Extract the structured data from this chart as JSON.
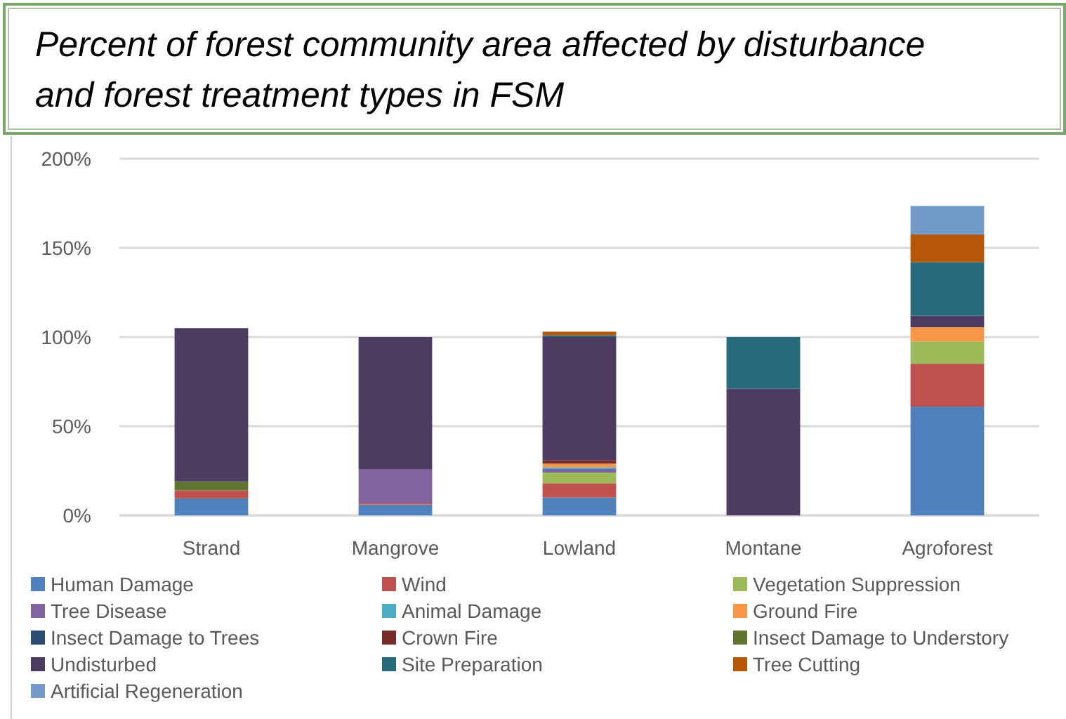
{
  "chart_data": {
    "type": "bar",
    "stacked": true,
    "title": "Percent of forest community area affected by disturbance and forest treatment types in FSM",
    "categories": [
      "Strand",
      "Mangrove",
      "Lowland",
      "Montane",
      "Agroforest"
    ],
    "ylim": [
      0,
      200
    ],
    "yticks": [
      {
        "value": 0,
        "label": "0%"
      },
      {
        "value": 50,
        "label": "50%"
      },
      {
        "value": 100,
        "label": "100%"
      },
      {
        "value": 150,
        "label": "150%"
      },
      {
        "value": 200,
        "label": "200%"
      }
    ],
    "grid": "y",
    "legend": "bottom",
    "series": [
      {
        "name": "Human Damage",
        "color": "#4f81bd",
        "values": [
          9.5,
          6,
          10,
          null,
          61
        ]
      },
      {
        "name": "Wind",
        "color": "#c0504d",
        "values": [
          4.5,
          1,
          8,
          null,
          24
        ]
      },
      {
        "name": "Vegetation Suppression",
        "color": "#9bbb59",
        "values": [
          null,
          null,
          6,
          null,
          12.5
        ]
      },
      {
        "name": "Tree Disease",
        "color": "#8064a2",
        "values": [
          null,
          19,
          2,
          null,
          null
        ]
      },
      {
        "name": "Animal Damage",
        "color": "#4bacc6",
        "values": [
          null,
          null,
          1,
          null,
          null
        ]
      },
      {
        "name": "Ground Fire",
        "color": "#f79646",
        "values": [
          null,
          null,
          2,
          null,
          8
        ]
      },
      {
        "name": "Insect Damage to Trees",
        "color": "#2c4d75",
        "values": [
          null,
          null,
          null,
          null,
          null
        ]
      },
      {
        "name": "Crown Fire",
        "color": "#772c2a",
        "values": [
          null,
          null,
          2,
          null,
          null
        ]
      },
      {
        "name": "Insect Damage to Understory",
        "color": "#5f7530",
        "values": [
          5,
          null,
          null,
          null,
          null
        ]
      },
      {
        "name": "Undisturbed",
        "color": "#4d3b62",
        "values": [
          86,
          74,
          69,
          71,
          6.5
        ]
      },
      {
        "name": "Site Preparation",
        "color": "#276a7c",
        "values": [
          null,
          null,
          1,
          29,
          30
        ]
      },
      {
        "name": "Tree Cutting",
        "color": "#b65708",
        "values": [
          null,
          null,
          2,
          null,
          15.5
        ]
      },
      {
        "name": "Artificial Regeneration",
        "color": "#729aca",
        "values": [
          null,
          null,
          null,
          null,
          16
        ]
      }
    ]
  }
}
